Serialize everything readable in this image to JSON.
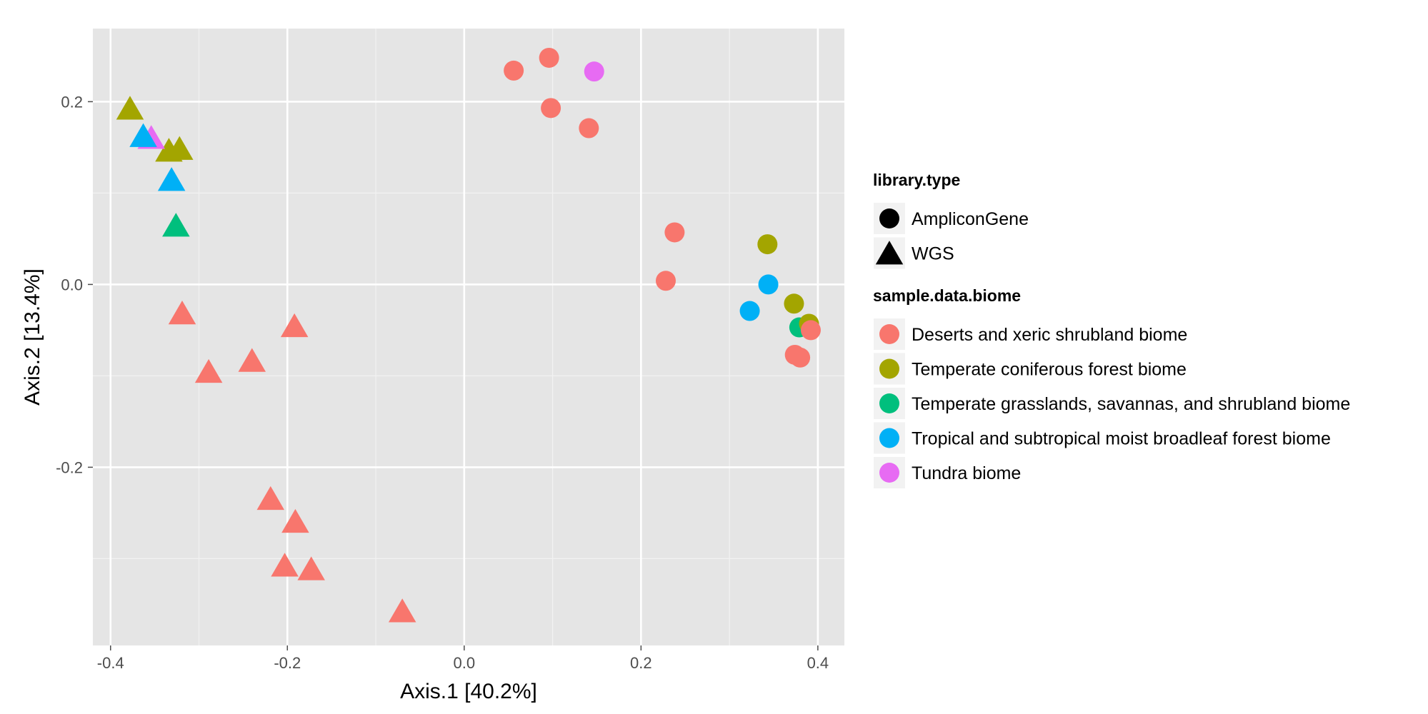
{
  "chart_data": {
    "type": "scatter",
    "xlabel": "Axis.1   [40.2%]",
    "ylabel": "Axis.2   [13.4%]",
    "xlim": [
      -0.42,
      0.43
    ],
    "ylim": [
      -0.395,
      0.28
    ],
    "x_ticks": [
      -0.4,
      -0.2,
      0.0,
      0.2,
      0.4
    ],
    "x_tick_labels": [
      "-0.4",
      "-0.2",
      "0.0",
      "0.2",
      "0.4"
    ],
    "y_ticks": [
      -0.2,
      0.0,
      0.2
    ],
    "y_tick_labels": [
      "-0.2",
      "0.0",
      "0.2"
    ],
    "grid": true,
    "legend_placement": "right",
    "legends": {
      "shape": {
        "title": "library.type",
        "entries": [
          {
            "label": "AmpliconGene",
            "shape": "circle"
          },
          {
            "label": "WGS",
            "shape": "triangle"
          }
        ]
      },
      "color": {
        "title": "sample.data.biome",
        "entries": [
          {
            "label": "Deserts and xeric shrubland biome",
            "color": "#F8766D"
          },
          {
            "label": "Temperate coniferous forest biome",
            "color": "#A3A500"
          },
          {
            "label": "Temperate grasslands, savannas, and shrubland biome",
            "color": "#00BF7D"
          },
          {
            "label": "Tropical and subtropical moist broadleaf forest biome",
            "color": "#00B0F6"
          },
          {
            "label": "Tundra biome",
            "color": "#E76BF3"
          }
        ]
      }
    },
    "points": [
      {
        "x": -0.378,
        "y": 0.192,
        "shape": "triangle",
        "biome": 1
      },
      {
        "x": -0.334,
        "y": 0.146,
        "shape": "triangle",
        "biome": 1
      },
      {
        "x": -0.322,
        "y": 0.148,
        "shape": "triangle",
        "biome": 1
      },
      {
        "x": -0.354,
        "y": 0.16,
        "shape": "triangle",
        "biome": 4
      },
      {
        "x": -0.363,
        "y": 0.162,
        "shape": "triangle",
        "biome": 3
      },
      {
        "x": -0.331,
        "y": 0.114,
        "shape": "triangle",
        "biome": 3
      },
      {
        "x": -0.326,
        "y": 0.064,
        "shape": "triangle",
        "biome": 2
      },
      {
        "x": -0.319,
        "y": -0.032,
        "shape": "triangle",
        "biome": 0
      },
      {
        "x": -0.192,
        "y": -0.046,
        "shape": "triangle",
        "biome": 0
      },
      {
        "x": -0.289,
        "y": -0.096,
        "shape": "triangle",
        "biome": 0
      },
      {
        "x": -0.24,
        "y": -0.084,
        "shape": "triangle",
        "biome": 0
      },
      {
        "x": -0.219,
        "y": -0.235,
        "shape": "triangle",
        "biome": 0
      },
      {
        "x": -0.191,
        "y": -0.26,
        "shape": "triangle",
        "biome": 0
      },
      {
        "x": -0.203,
        "y": -0.308,
        "shape": "triangle",
        "biome": 0
      },
      {
        "x": -0.173,
        "y": -0.312,
        "shape": "triangle",
        "biome": 0
      },
      {
        "x": -0.07,
        "y": -0.358,
        "shape": "triangle",
        "biome": 0
      },
      {
        "x": 0.056,
        "y": 0.234,
        "shape": "circle",
        "biome": 0
      },
      {
        "x": 0.096,
        "y": 0.248,
        "shape": "circle",
        "biome": 0
      },
      {
        "x": 0.098,
        "y": 0.193,
        "shape": "circle",
        "biome": 0
      },
      {
        "x": 0.141,
        "y": 0.171,
        "shape": "circle",
        "biome": 0
      },
      {
        "x": 0.147,
        "y": 0.233,
        "shape": "circle",
        "biome": 4
      },
      {
        "x": 0.238,
        "y": 0.057,
        "shape": "circle",
        "biome": 0
      },
      {
        "x": 0.228,
        "y": 0.004,
        "shape": "circle",
        "biome": 0
      },
      {
        "x": 0.343,
        "y": 0.044,
        "shape": "circle",
        "biome": 1
      },
      {
        "x": 0.344,
        "y": 0.0,
        "shape": "circle",
        "biome": 3
      },
      {
        "x": 0.323,
        "y": -0.029,
        "shape": "circle",
        "biome": 3
      },
      {
        "x": 0.373,
        "y": -0.021,
        "shape": "circle",
        "biome": 1
      },
      {
        "x": 0.379,
        "y": -0.047,
        "shape": "circle",
        "biome": 2
      },
      {
        "x": 0.39,
        "y": -0.043,
        "shape": "circle",
        "biome": 1
      },
      {
        "x": 0.392,
        "y": -0.05,
        "shape": "circle",
        "biome": 0
      },
      {
        "x": 0.374,
        "y": -0.077,
        "shape": "circle",
        "biome": 0
      },
      {
        "x": 0.38,
        "y": -0.08,
        "shape": "circle",
        "biome": 0
      }
    ]
  }
}
